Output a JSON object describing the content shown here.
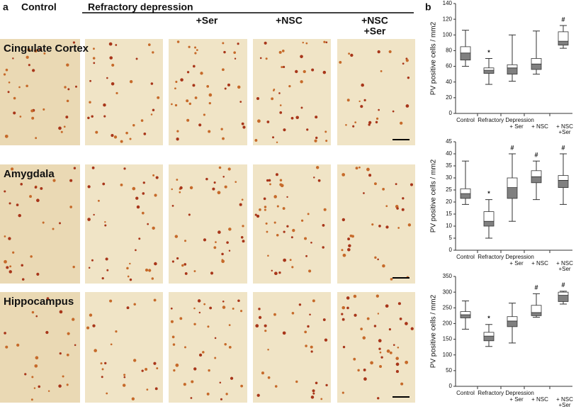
{
  "panel_a": {
    "label": "a",
    "columns": [
      "Control",
      "Refractory depression",
      "+Ser",
      "+NSC",
      [
        "+NSC",
        "+Ser"
      ]
    ],
    "rows": [
      "Cingulate Cortex",
      "Amygdala",
      "Hippocampus"
    ]
  },
  "panel_b": {
    "label": "b"
  },
  "chart_data": [
    {
      "type": "box",
      "ylabel": "PV positive cells / mm2",
      "ylim": [
        0,
        140
      ],
      "yticks": [
        0,
        20,
        40,
        60,
        80,
        100,
        120,
        140
      ],
      "categories": [
        "Control",
        "Refractory Depression",
        "+ Ser",
        "+ NSC",
        [
          "+ NSC",
          "+Ser"
        ]
      ],
      "boxes": [
        {
          "min": 60,
          "q1": 68,
          "median": 77,
          "q3": 85,
          "max": 106
        },
        {
          "min": 37,
          "q1": 51,
          "median": 55,
          "q3": 58,
          "max": 70
        },
        {
          "min": 41,
          "q1": 50,
          "median": 58,
          "q3": 62,
          "max": 100
        },
        {
          "min": 50,
          "q1": 56,
          "median": 63,
          "q3": 70,
          "max": 105
        },
        {
          "min": 83,
          "q1": 87,
          "median": 92,
          "q3": 104,
          "max": 112
        }
      ],
      "annotations": [
        null,
        "*",
        null,
        null,
        "#"
      ]
    },
    {
      "type": "box",
      "ylabel": "PV positive cells / mm2",
      "ylim": [
        0,
        45
      ],
      "yticks": [
        0,
        5,
        10,
        15,
        20,
        25,
        30,
        35,
        40,
        45
      ],
      "categories": [
        "Control",
        "Refractory Depression",
        "+ Ser",
        "+ NSC",
        [
          "+ NSC",
          "+Ser"
        ]
      ],
      "boxes": [
        {
          "min": 19,
          "q1": 21.5,
          "median": 23.5,
          "q3": 25.5,
          "max": 37
        },
        {
          "min": 5,
          "q1": 10,
          "median": 12,
          "q3": 16,
          "max": 21
        },
        {
          "min": 12,
          "q1": 21.5,
          "median": 26,
          "q3": 30,
          "max": 40
        },
        {
          "min": 21,
          "q1": 28,
          "median": 30.5,
          "q3": 33,
          "max": 37
        },
        {
          "min": 19,
          "q1": 26,
          "median": 29,
          "q3": 31,
          "max": 40
        }
      ],
      "annotations": [
        null,
        "*",
        "#",
        "#",
        "#"
      ]
    },
    {
      "type": "box",
      "ylabel": "PV positive cells / mm2",
      "ylim": [
        0,
        350
      ],
      "yticks": [
        0,
        50,
        100,
        150,
        200,
        250,
        300,
        350
      ],
      "categories": [
        "Control",
        "Refractory Depression",
        "+ Ser",
        "+ NSC",
        [
          "+ NSC",
          "+Ser"
        ]
      ],
      "boxes": [
        {
          "min": 182,
          "q1": 218,
          "median": 228,
          "q3": 238,
          "max": 272
        },
        {
          "min": 127,
          "q1": 145,
          "median": 160,
          "q3": 172,
          "max": 197
        },
        {
          "min": 138,
          "q1": 190,
          "median": 208,
          "q3": 222,
          "max": 265
        },
        {
          "min": 220,
          "q1": 225,
          "median": 235,
          "q3": 258,
          "max": 295
        },
        {
          "min": 262,
          "q1": 270,
          "median": 290,
          "q3": 300,
          "max": 303
        }
      ],
      "annotations": [
        null,
        "*",
        null,
        "#",
        "#"
      ]
    }
  ]
}
